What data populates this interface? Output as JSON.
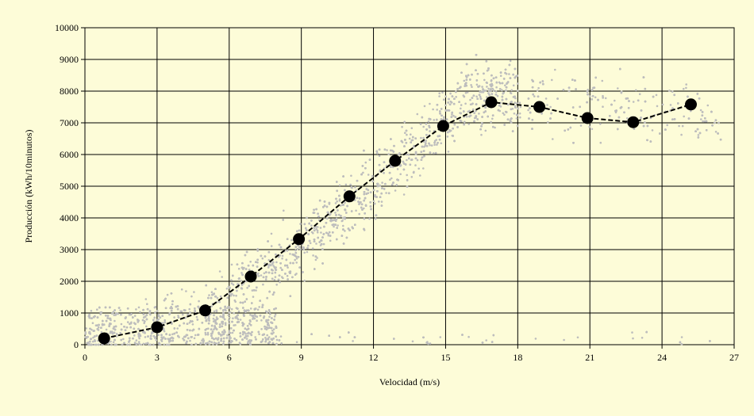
{
  "chart_data": {
    "type": "scatter",
    "xlabel": "Velocidad (m/s)",
    "ylabel": "Producción (kWh/10minutos)",
    "xlim": [
      0,
      27
    ],
    "ylim": [
      0,
      10000
    ],
    "xticks": [
      0,
      3,
      6,
      9,
      12,
      15,
      18,
      21,
      24,
      27
    ],
    "yticks": [
      0,
      1000,
      2000,
      3000,
      4000,
      5000,
      6000,
      7000,
      8000,
      9000,
      10000
    ],
    "xtick_labels": [
      "0",
      "3",
      "6",
      "9",
      "12",
      "15",
      "18",
      "21",
      "24",
      "27"
    ],
    "ytick_labels": [
      "0",
      "1000",
      "2000",
      "3000",
      "4000",
      "5000",
      "6000",
      "7000",
      "8000",
      "9000",
      "10000"
    ],
    "grid": true,
    "background": "#fdfcd8",
    "scatter_color": "#bdbdbd",
    "curve_color": "#000000",
    "series": [
      {
        "kind": "scatter-cloud",
        "description_points": [
          [
            1,
            200
          ],
          [
            2,
            400
          ],
          [
            3,
            300
          ],
          [
            4,
            600
          ],
          [
            5,
            900
          ],
          [
            6,
            1500
          ],
          [
            7,
            2000
          ],
          [
            8,
            2800
          ],
          [
            9,
            3300
          ],
          [
            10,
            4500
          ],
          [
            11,
            5200
          ],
          [
            12,
            6500
          ],
          [
            13,
            7200
          ],
          [
            14,
            7800
          ],
          [
            15,
            8000
          ],
          [
            16,
            8200
          ],
          [
            17,
            8000
          ],
          [
            18,
            7800
          ],
          [
            19,
            7600
          ],
          [
            20,
            7500
          ],
          [
            22,
            7300
          ],
          [
            24,
            7400
          ],
          [
            26,
            7600
          ]
        ]
      },
      {
        "kind": "binned-mean",
        "points": [
          [
            0.8,
            200
          ],
          [
            3.0,
            550
          ],
          [
            5.0,
            1080
          ],
          [
            6.9,
            2150
          ],
          [
            8.9,
            3330
          ],
          [
            11.0,
            4680
          ],
          [
            12.9,
            5800
          ],
          [
            14.9,
            6900
          ],
          [
            16.9,
            7650
          ],
          [
            18.9,
            7500
          ],
          [
            20.9,
            7150
          ],
          [
            22.8,
            7020
          ],
          [
            25.2,
            7580
          ]
        ]
      }
    ]
  }
}
